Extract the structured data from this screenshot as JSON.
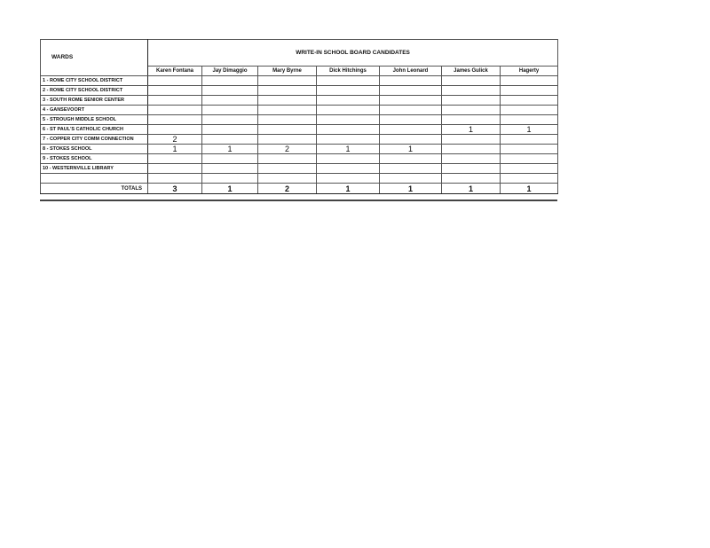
{
  "header": {
    "wards_label": "WARDS",
    "title": "WRITE-IN SCHOOL BOARD CANDIDATES"
  },
  "candidates": [
    "Karen Fontana",
    "Jay Dimaggio",
    "Mary Byrne",
    "Dick Hitchings",
    "John Leonard",
    "James Gulick",
    "Hagerty"
  ],
  "rows": [
    {
      "ward": "1 - ROME CITY SCHOOL DISTRICT",
      "values": [
        "",
        "",
        "",
        "",
        "",
        "",
        ""
      ]
    },
    {
      "ward": "2 - ROME CITY SCHOOL DISTRICT",
      "values": [
        "",
        "",
        "",
        "",
        "",
        "",
        ""
      ]
    },
    {
      "ward": "3 - SOUTH ROME SENIOR CENTER",
      "values": [
        "",
        "",
        "",
        "",
        "",
        "",
        ""
      ]
    },
    {
      "ward": "4 - GANSEVOORT",
      "values": [
        "",
        "",
        "",
        "",
        "",
        "",
        ""
      ]
    },
    {
      "ward": "5 - STROUGH MIDDLE SCHOOL",
      "values": [
        "",
        "",
        "",
        "",
        "",
        "",
        ""
      ]
    },
    {
      "ward": "6 - ST PAUL'S CATHOLIC CHURCH",
      "values": [
        "",
        "",
        "",
        "",
        "",
        "1",
        "1"
      ]
    },
    {
      "ward": "7 - COPPER CITY COMM CONNECTION",
      "values": [
        "2",
        "",
        "",
        "",
        "",
        "",
        ""
      ]
    },
    {
      "ward": "8 - STOKES SCHOOL",
      "values": [
        "1",
        "1",
        "2",
        "1",
        "1",
        "",
        ""
      ]
    },
    {
      "ward": "9 - STOKES SCHOOL",
      "values": [
        "",
        "",
        "",
        "",
        "",
        "",
        ""
      ]
    },
    {
      "ward": "10 - WESTERNVILLE LIBRARY",
      "values": [
        "",
        "",
        "",
        "",
        "",
        "",
        ""
      ]
    },
    {
      "ward": "",
      "values": [
        "",
        "",
        "",
        "",
        "",
        "",
        ""
      ]
    }
  ],
  "totals": {
    "label": "TOTALS",
    "values": [
      "3",
      "1",
      "2",
      "1",
      "1",
      "1",
      "1"
    ]
  }
}
